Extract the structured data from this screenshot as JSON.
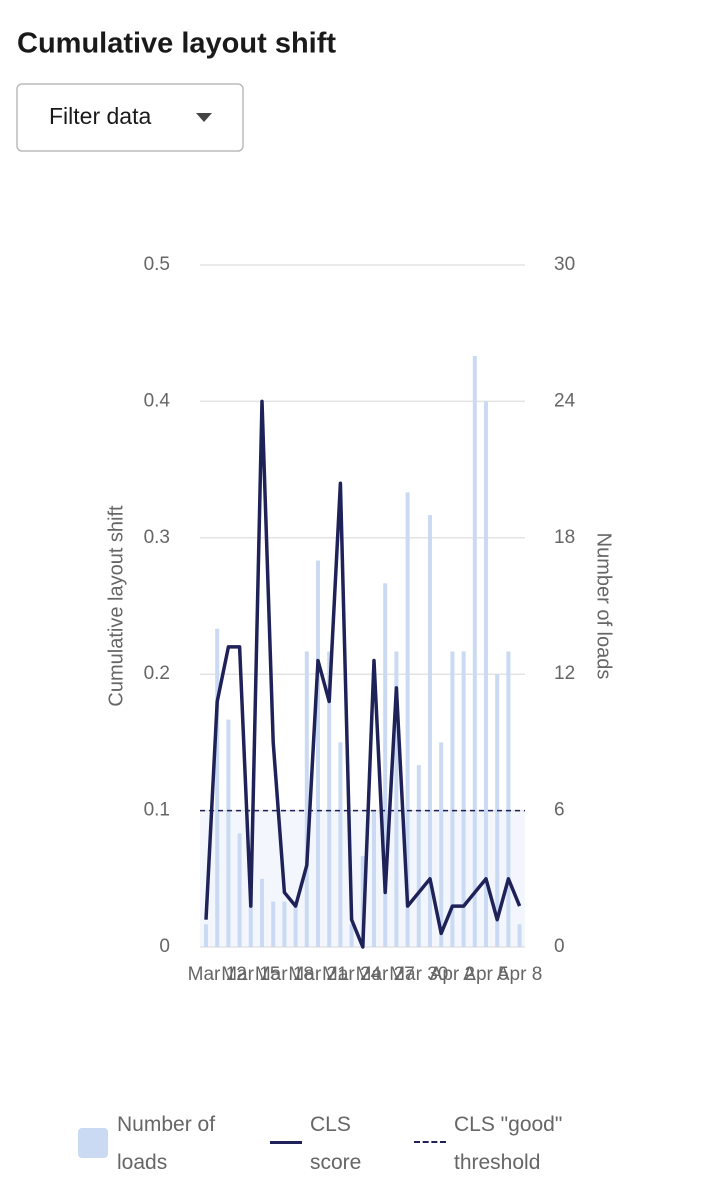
{
  "title": "Cumulative layout shift",
  "filter_button": "Filter data",
  "chart_data": {
    "type": "bar-line",
    "categories": [
      null,
      "Mar 12",
      null,
      null,
      "Mar 15",
      null,
      null,
      "Mar 18",
      null,
      null,
      "Mar 21",
      null,
      null,
      "Mar 24",
      null,
      null,
      "Mar 27",
      null,
      null,
      "Mar 30",
      null,
      null,
      "Apr 2",
      null,
      null,
      "Apr 5",
      null,
      null,
      "Apr 8"
    ],
    "series": [
      {
        "name": "Number of loads",
        "type": "bar",
        "axis": "y2",
        "color": "#c9daf2",
        "values": [
          1,
          14,
          10,
          5,
          3,
          3,
          2,
          2,
          2,
          13,
          17,
          13,
          9,
          1,
          4,
          6,
          16,
          13,
          20,
          8,
          19,
          9,
          13,
          13,
          26,
          24,
          12,
          13,
          1
        ]
      },
      {
        "name": "CLS score",
        "type": "line",
        "color": "#1e2258",
        "values": [
          0.02,
          0.18,
          0.22,
          0.22,
          0.03,
          0.4,
          0.15,
          0.04,
          0.03,
          0.06,
          0.21,
          0.18,
          0.34,
          0.02,
          0,
          0.21,
          0.04,
          0.19,
          0.03,
          0.04,
          0.05,
          0.01,
          0.03,
          0.03,
          0.04,
          0.05,
          0.02,
          0.05,
          0.03
        ]
      }
    ],
    "threshold": {
      "name": "CLS \"good\" threshold",
      "value": 0.1,
      "color": "#1e2258"
    },
    "ylabel": "Cumulative layout shift",
    "y2label": "Number of loads",
    "ylim": [
      0,
      0.5
    ],
    "yticks": [
      0,
      0.1,
      0.2,
      0.3,
      0.4,
      0.5
    ],
    "y2lim": [
      0,
      30
    ],
    "y2ticks": [
      0,
      6,
      12,
      18,
      24,
      30
    ],
    "grid": true
  }
}
